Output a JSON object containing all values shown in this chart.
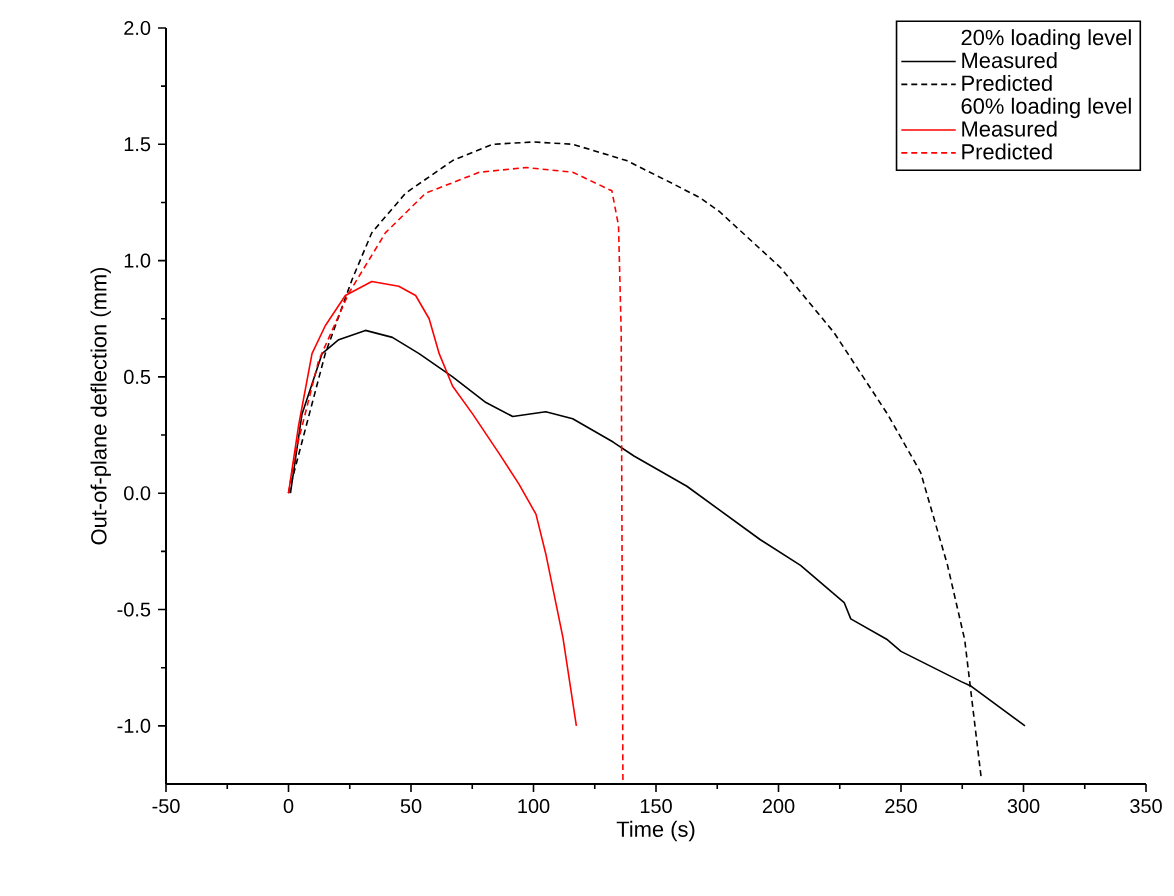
{
  "chart_data": {
    "type": "line",
    "xlabel": "Time (s)",
    "ylabel": "Out-of-plane deflection (mm)",
    "xlim": [
      -50,
      350
    ],
    "xticks": [
      -50,
      0,
      50,
      100,
      150,
      200,
      250,
      300,
      350
    ],
    "ylim": [
      -1.25,
      2.0
    ],
    "yticks": [
      {
        "value": -1.0,
        "label": "-1.0"
      },
      {
        "value": -0.5,
        "label": "-0.5"
      },
      {
        "value": 0,
        "label": "0.0"
      },
      {
        "value": 0.5,
        "label": "0.5"
      },
      {
        "value": 1.0,
        "label": "1.0"
      },
      {
        "value": 1.5,
        "label": "1.5"
      },
      {
        "value": 2.0,
        "label": "2.0"
      }
    ],
    "legend": "top right",
    "grid": false,
    "annotations": [
      "20% loading level",
      "60% loading level"
    ],
    "series": [
      {
        "name": "Measured",
        "color": "#000000",
        "line_style": "solid",
        "x": [
          0.8,
          5.5,
          13.7,
          20.5,
          31.4,
          42.4,
          53.3,
          67,
          80.6,
          91.5,
          105,
          116,
          132.5,
          141,
          162.6,
          192.6,
          209,
          226.8,
          229.5,
          244.5,
          250,
          274.6,
          278.7,
          300.6
        ],
        "values": [
          0,
          0.34,
          0.6,
          0.66,
          0.7,
          0.67,
          0.6,
          0.5,
          0.39,
          0.33,
          0.35,
          0.32,
          0.22,
          0.16,
          0.03,
          -0.2,
          -0.31,
          -0.47,
          -0.54,
          -0.63,
          -0.68,
          -0.81,
          -0.83,
          -1.0
        ]
      },
      {
        "name": "Predicted",
        "color": "#000000",
        "line_style": "dashed",
        "x": [
          0,
          15,
          26,
          34,
          47.8,
          67,
          83.4,
          99.8,
          116,
          138,
          157,
          168,
          176,
          200.8,
          222.7,
          244.5,
          258,
          269,
          276,
          282.8
        ],
        "values": [
          0,
          0.6,
          0.92,
          1.12,
          1.29,
          1.43,
          1.5,
          1.51,
          1.5,
          1.43,
          1.33,
          1.27,
          1.21,
          0.97,
          0.69,
          0.34,
          0.09,
          -0.31,
          -0.63,
          -1.23
        ]
      },
      {
        "name": "Measured",
        "color": "#ff0000",
        "line_style": "solid",
        "x": [
          0,
          4.1,
          9.6,
          15,
          23.2,
          34,
          45,
          51.9,
          57.4,
          61.5,
          67,
          75.2,
          86,
          94,
          101,
          105,
          112,
          117.5
        ],
        "values": [
          0,
          0.29,
          0.6,
          0.72,
          0.85,
          0.91,
          0.89,
          0.85,
          0.75,
          0.6,
          0.46,
          0.34,
          0.17,
          0.04,
          -0.09,
          -0.26,
          -0.62,
          -1.0
        ]
      },
      {
        "name": "Predicted",
        "color": "#ff0000",
        "line_style": "dashed",
        "x": [
          0,
          2.7,
          12.3,
          24.6,
          39.6,
          56,
          77.9,
          97,
          116,
          132,
          134.7,
          135.8,
          136.5
        ],
        "values": [
          0,
          0.17,
          0.57,
          0.86,
          1.12,
          1.29,
          1.38,
          1.4,
          1.38,
          1.3,
          1.15,
          0.69,
          -1.25
        ]
      }
    ]
  }
}
